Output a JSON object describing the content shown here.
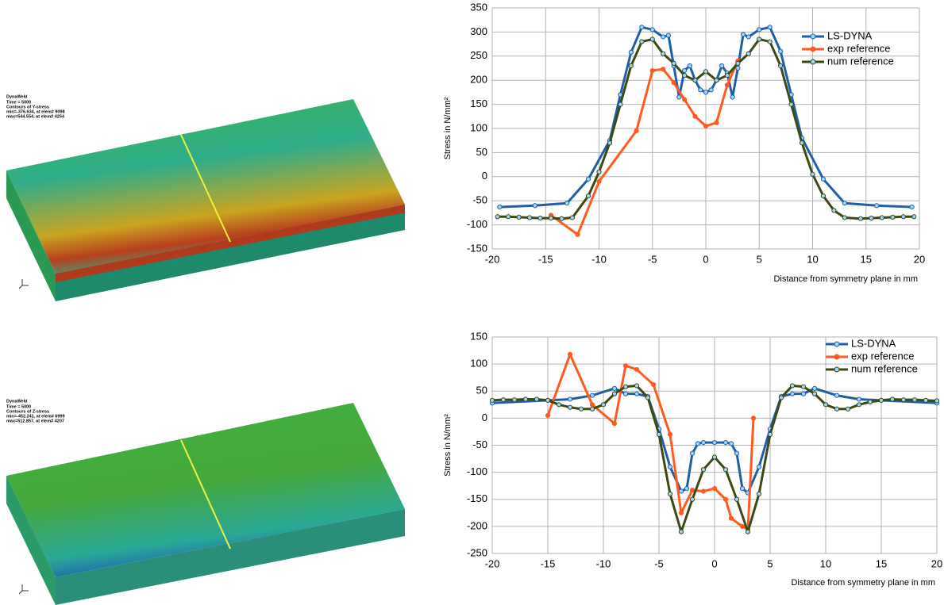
{
  "panels": [
    {
      "lines": [
        "DynaWeld",
        "Time =      5000",
        "Contours of Y-stress",
        " min=-376.634, at elem# 9098",
        " max=544.554, at elem# 4254"
      ]
    },
    {
      "lines": [
        "DynaWeld",
        "Time =      5000",
        "Contours of Z-stress",
        " min=-452.241, at elem# 6999",
        " max=512.857, at elem# 4207"
      ]
    }
  ],
  "chart_data": [
    {
      "type": "line",
      "ylabel": "Stress in N/mm²",
      "xlabel": "Distance from symmetry plane in mm",
      "xlim": [
        -20,
        20
      ],
      "ylim": [
        -150,
        350
      ],
      "xticks": [
        -20,
        -15,
        -10,
        -5,
        0,
        5,
        10,
        15,
        20
      ],
      "yticks": [
        -150,
        -100,
        -50,
        0,
        50,
        100,
        150,
        200,
        250,
        300,
        350
      ],
      "grid": true,
      "legend": "upper right",
      "series": [
        {
          "name": "LS-DYNA",
          "color": "#1f5fa8",
          "x": [
            -19.3,
            -16,
            -13,
            -11,
            -9,
            -8,
            -7,
            -6,
            -5,
            -4,
            -3.5,
            -3,
            -2.5,
            -2,
            -1.5,
            -1,
            -0.5,
            0,
            0.5,
            1,
            1.5,
            2,
            2.5,
            3,
            3.5,
            4,
            5,
            6,
            7,
            8,
            9,
            11,
            13,
            16,
            19.3
          ],
          "values": [
            -63,
            -60,
            -55,
            -5,
            75,
            170,
            258,
            310,
            305,
            290,
            293,
            230,
            165,
            220,
            230,
            200,
            180,
            175,
            180,
            200,
            230,
            215,
            165,
            225,
            295,
            290,
            305,
            310,
            260,
            170,
            80,
            -5,
            -55,
            -60,
            -63
          ]
        },
        {
          "name": "exp reference",
          "color": "#ff5a1f",
          "x": [
            -14.5,
            -12,
            -10,
            -6.5,
            -5,
            -4,
            -3,
            -2,
            -1,
            0,
            1,
            2,
            3
          ],
          "values": [
            -80,
            -120,
            -10,
            95,
            220,
            223,
            195,
            160,
            125,
            105,
            112,
            190,
            240
          ]
        },
        {
          "name": "num reference",
          "color": "#3a4a12",
          "x": [
            -19.5,
            -18.5,
            -17.5,
            -16.5,
            -15.5,
            -14.5,
            -13.5,
            -12.5,
            -11,
            -10,
            -9,
            -8,
            -7,
            -6,
            -5,
            -4,
            -3,
            -2,
            -1,
            0,
            1,
            2,
            3,
            4,
            5,
            6,
            7,
            8,
            9,
            10,
            11,
            12,
            13,
            14.5,
            15.5,
            16.5,
            17.5,
            18.5,
            19.5
          ],
          "values": [
            -83,
            -83,
            -84,
            -85,
            -86,
            -86,
            -87,
            -85,
            -40,
            10,
            70,
            150,
            230,
            280,
            285,
            255,
            235,
            210,
            200,
            218,
            200,
            210,
            235,
            255,
            285,
            280,
            230,
            150,
            70,
            5,
            -40,
            -70,
            -85,
            -87,
            -86,
            -85,
            -84,
            -83,
            -83
          ]
        }
      ]
    },
    {
      "type": "line",
      "ylabel": "Stress in N/mm²",
      "xlabel": "Distance from symmetry plane in mm",
      "xlim": [
        -20,
        20
      ],
      "ylim": [
        -250,
        150
      ],
      "xticks": [
        -20,
        -15,
        -10,
        -5,
        0,
        5,
        10,
        15,
        20
      ],
      "yticks": [
        -250,
        -200,
        -150,
        -100,
        -50,
        0,
        50,
        100,
        150
      ],
      "grid": true,
      "legend": "upper right",
      "series": [
        {
          "name": "LS-DYNA",
          "color": "#1f5fa8",
          "x": [
            -20,
            -15,
            -13,
            -11,
            -9,
            -8,
            -7,
            -6,
            -5,
            -4,
            -3,
            -2.5,
            -2,
            -1.5,
            -1,
            0,
            1,
            1.5,
            2,
            2.5,
            3,
            4,
            5,
            6,
            7,
            8,
            9,
            11,
            13,
            15,
            20
          ],
          "values": [
            28,
            33,
            35,
            42,
            55,
            45,
            45,
            40,
            -20,
            -90,
            -135,
            -130,
            -65,
            -47,
            -45,
            -45,
            -45,
            -47,
            -65,
            -130,
            -138,
            -90,
            -20,
            40,
            45,
            45,
            55,
            42,
            35,
            33,
            28
          ]
        },
        {
          "name": "exp reference",
          "color": "#ff5a1f",
          "x": [
            -15,
            -13,
            -11,
            -9,
            -8,
            -7,
            -5.5,
            -4,
            -3,
            -2,
            -1,
            0,
            1,
            1.5,
            2.5,
            3,
            3.5
          ],
          "values": [
            5,
            118,
            25,
            -10,
            97,
            90,
            62,
            -30,
            -175,
            -133,
            -135,
            -130,
            -150,
            -185,
            -200,
            -205,
            0
          ]
        },
        {
          "name": "num reference",
          "color": "#3a4a12",
          "x": [
            -20,
            -19,
            -18,
            -17,
            -16,
            -15,
            -14,
            -13,
            -12,
            -11,
            -10,
            -9,
            -8,
            -7,
            -6,
            -5,
            -4,
            -3,
            -2,
            -1,
            0,
            1,
            2,
            3,
            4,
            5,
            6,
            7,
            8,
            9,
            10,
            11,
            12,
            13,
            14,
            15,
            16,
            17,
            18,
            19,
            20
          ],
          "values": [
            33,
            34,
            34,
            35,
            35,
            33,
            25,
            20,
            17,
            17,
            25,
            45,
            58,
            60,
            38,
            -30,
            -140,
            -210,
            -150,
            -95,
            -72,
            -95,
            -150,
            -210,
            -140,
            -30,
            38,
            60,
            58,
            45,
            25,
            17,
            17,
            25,
            30,
            33,
            35,
            34,
            34,
            33,
            32
          ]
        }
      ]
    }
  ]
}
